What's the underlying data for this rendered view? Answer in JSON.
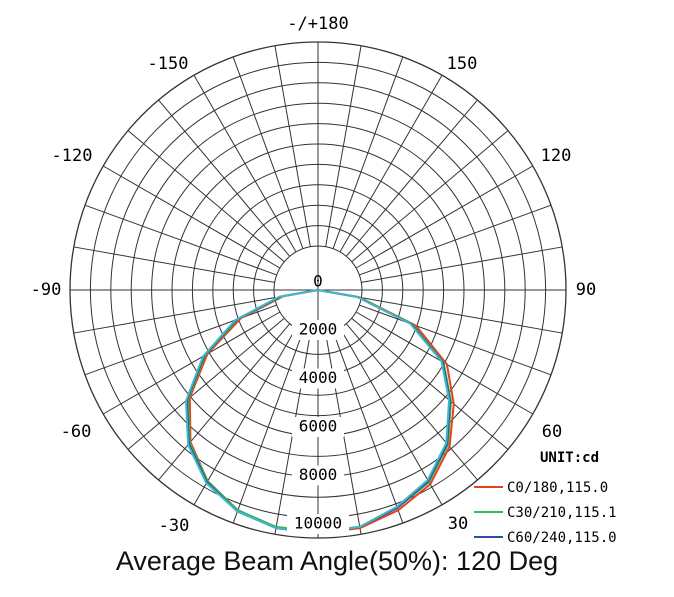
{
  "chart_data": {
    "type": "line",
    "polar": true,
    "unit_label": "UNIT:cd",
    "angle_tick_labels": [
      {
        "deg": 180,
        "text": "-/+180"
      },
      {
        "deg": -150,
        "text": "-150"
      },
      {
        "deg": 150,
        "text": "150"
      },
      {
        "deg": -120,
        "text": "-120"
      },
      {
        "deg": 120,
        "text": "120"
      },
      {
        "deg": -90,
        "text": "-90"
      },
      {
        "deg": 90,
        "text": "90"
      },
      {
        "deg": -60,
        "text": "-60"
      },
      {
        "deg": 60,
        "text": "60"
      },
      {
        "deg": -30,
        "text": "-30"
      },
      {
        "deg": 30,
        "text": "30"
      }
    ],
    "radial_tick_labels": [
      "0",
      "2000",
      "4000",
      "6000",
      "8000",
      "10000"
    ],
    "radial_range": [
      0,
      10000
    ],
    "angle_step_deg": 10,
    "grid": true,
    "legend_position": "bottom-right",
    "series": [
      {
        "name": "C0/180,115.0",
        "color": "#e8401c",
        "angles": [
          -90,
          -80,
          -70,
          -60,
          -50,
          -40,
          -30,
          -20,
          -10,
          0,
          10,
          20,
          30,
          40,
          50,
          60,
          70,
          80,
          90
        ],
        "values": [
          0,
          1400,
          3300,
          5150,
          6750,
          8000,
          8900,
          9450,
          9750,
          9800,
          9750,
          9450,
          9050,
          8250,
          7150,
          6000,
          4200,
          1700,
          0
        ]
      },
      {
        "name": "C30/210,115.1",
        "color": "#3cb84a",
        "angles": [
          -90,
          -80,
          -70,
          -60,
          -50,
          -40,
          -30,
          -20,
          -10,
          0,
          10,
          20,
          30,
          40,
          50,
          60,
          70,
          80,
          90
        ],
        "values": [
          0,
          1500,
          3450,
          5250,
          6850,
          8050,
          8900,
          9450,
          9700,
          9750,
          9700,
          9350,
          8950,
          8150,
          7000,
          5850,
          4050,
          1650,
          0
        ]
      },
      {
        "name": "C60/240,115.0",
        "color": "#2d4ea2",
        "angles": [
          -90,
          -80,
          -70,
          -60,
          -50,
          -40,
          -30,
          -20,
          -10,
          0,
          10,
          20,
          30,
          40,
          50,
          60,
          70,
          80,
          90
        ],
        "values": [
          0,
          1550,
          3500,
          5300,
          6900,
          8100,
          8950,
          9500,
          9750,
          9800,
          9700,
          9350,
          8900,
          8100,
          6950,
          5800,
          4000,
          1600,
          0
        ]
      },
      {
        "name": "",
        "color": "#3fb8c8",
        "angles": [
          -90,
          -80,
          -70,
          -60,
          -50,
          -40,
          -30,
          -20,
          -10,
          0,
          10,
          20,
          30,
          40,
          50,
          60,
          70,
          80,
          90
        ],
        "values": [
          0,
          1600,
          3550,
          5350,
          6950,
          8150,
          9000,
          9500,
          9750,
          9800,
          9700,
          9300,
          8850,
          8050,
          6900,
          5750,
          3950,
          1600,
          0
        ]
      }
    ]
  },
  "caption": "Average Beam Angle(50%): 120 Deg"
}
